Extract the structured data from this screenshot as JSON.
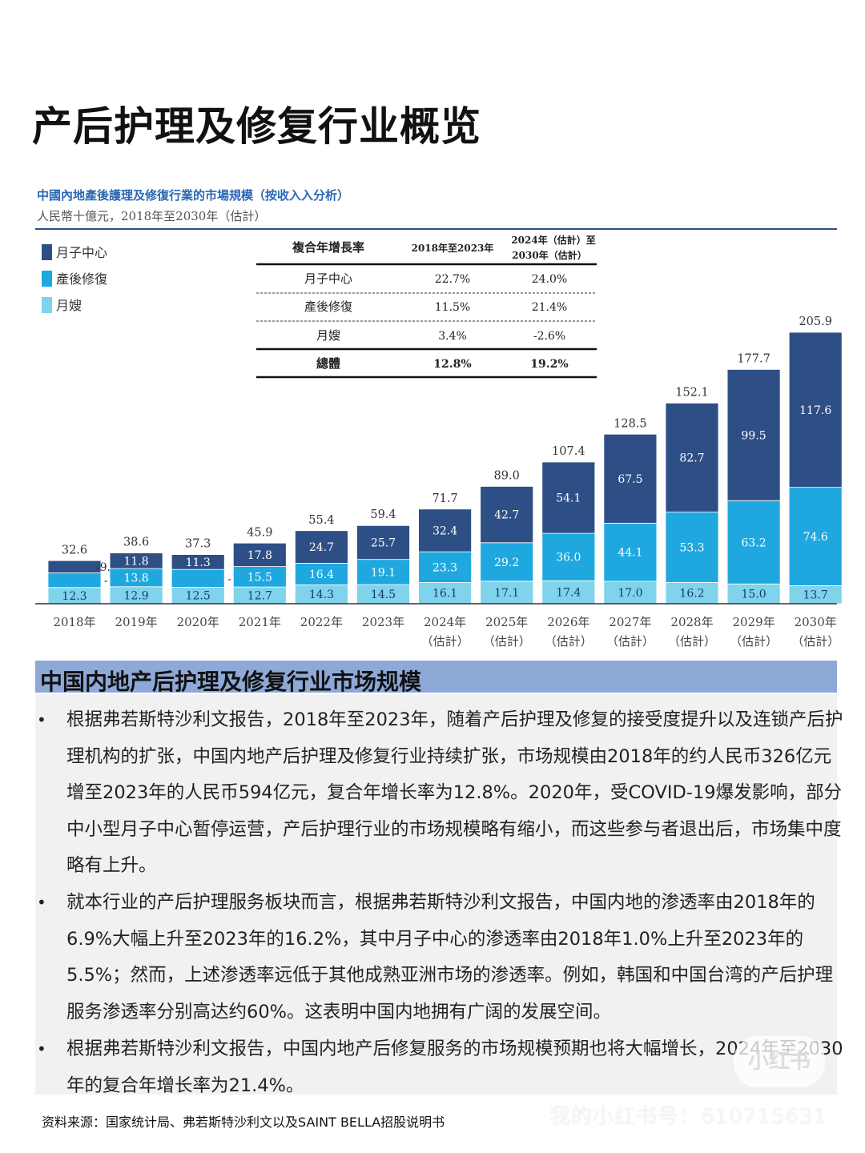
{
  "page": {
    "title": "产后护理及修复行业概览"
  },
  "chart_data": {
    "type": "bar",
    "stacked": true,
    "title": "中國內地產後護理及修復行業的市場規模（按收入入分析）",
    "subtitle": "人民幣十億元，2018年至2030年（估計）",
    "categories": [
      [
        "2018年",
        ""
      ],
      [
        "2019年",
        ""
      ],
      [
        "2020年",
        ""
      ],
      [
        "2021年",
        ""
      ],
      [
        "2022年",
        ""
      ],
      [
        "2023年",
        ""
      ],
      [
        "2024年",
        "（估計）"
      ],
      [
        "2025年",
        "（估計）"
      ],
      [
        "2026年",
        "（估計）"
      ],
      [
        "2027年",
        "（估計）"
      ],
      [
        "2028年",
        "（估計）"
      ],
      [
        "2029年",
        "（估計）"
      ],
      [
        "2030年",
        "（估計）"
      ]
    ],
    "series": [
      {
        "name": "月嫂",
        "color": "#7fd3ea",
        "values": [
          12.3,
          12.9,
          12.5,
          12.7,
          14.3,
          14.5,
          16.1,
          17.1,
          17.4,
          17.0,
          16.2,
          15.0,
          13.7
        ]
      },
      {
        "name": "產後修復",
        "color": "#1fa8df",
        "values": [
          11.1,
          13.8,
          13.5,
          15.5,
          16.4,
          19.1,
          23.3,
          29.2,
          36.0,
          44.1,
          53.3,
          63.2,
          74.6
        ]
      },
      {
        "name": "月子中心",
        "color": "#2e4f85",
        "values": [
          9.3,
          11.8,
          11.3,
          17.8,
          24.7,
          25.7,
          32.4,
          42.7,
          54.1,
          67.5,
          82.7,
          99.5,
          117.6
        ]
      }
    ],
    "totals": [
      32.6,
      38.6,
      37.3,
      45.9,
      55.4,
      59.4,
      71.7,
      89.0,
      107.4,
      128.5,
      152.1,
      177.7,
      205.9
    ],
    "legend_order": [
      "月子中心",
      "產後修復",
      "月嫂"
    ],
    "legend_position": "top-left",
    "ylim": [
      0,
      220
    ],
    "cagr_table": {
      "headers": [
        "複合年增長率",
        "2018年至2023年",
        "2024年（估計）至",
        "2030年（估計）"
      ],
      "rows": [
        {
          "label": "月子中心",
          "v1": "22.7%",
          "v2": "24.0%"
        },
        {
          "label": "產後修復",
          "v1": "11.5%",
          "v2": "21.4%"
        },
        {
          "label": "月嫂",
          "v1": "3.4%",
          "v2": "-2.6%"
        },
        {
          "label": "總體",
          "v1": "12.8%",
          "v2": "19.2%"
        }
      ]
    }
  },
  "section": {
    "title": "中国内地产后护理及修复行业市场规模",
    "bullets": [
      "根据弗若斯特沙利文报告，2018年至2023年，随着产后护理及修复的接受度提升以及连锁产后护理机构的扩张，中国内地产后护理及修复行业持续扩张，市场规模由2018年的约人民币326亿元增至2023年的人民币594亿元，复合年增长率为12.8%。2020年，受COVID-19爆发影响，部分中小型月子中心暂停运营，产后护理行业的市场规模略有缩小，而这些参与者退出后，市场集中度略有上升。",
      "就本行业的产后护理服务板块而言，根据弗若斯特沙利文报告，中国内地的渗透率由2018年的6.9%大幅上升至2023年的16.2%，其中月子中心的渗透率由2018年1.0%上升至2023年的5.5%；然而，上述渗透率远低于其他成熟亚洲市场的渗透率。例如，韩国和中国台湾的产后护理服务渗透率分别高达约60%。这表明中国内地拥有广阔的发展空间。",
      "根据弗若斯特沙利文报告，中国内地产后修复服务的市场规模预期也将大幅增长，2024年至2030年的复合年增长率为21.4%。"
    ],
    "bullet_symbol": "•"
  },
  "footer": {
    "source": "资料来源：国家统计局、弗若斯特沙利文以及SAINT BELLA招股说明书",
    "watermark": "我的小红书号：610715631",
    "logo": "小红书"
  }
}
